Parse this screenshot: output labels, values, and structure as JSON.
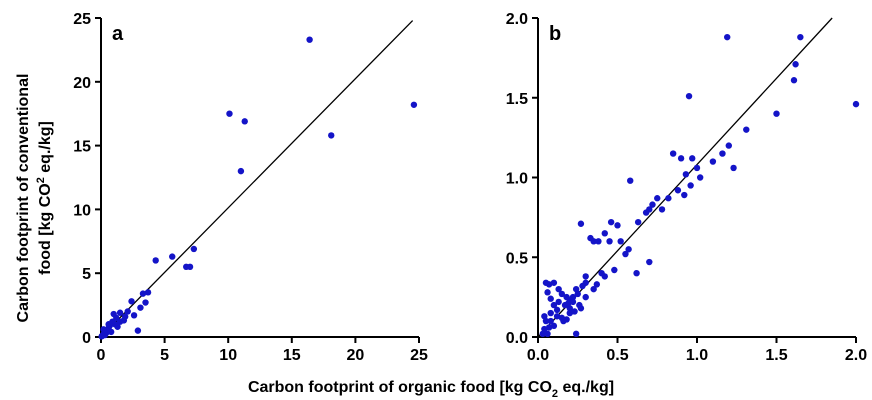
{
  "shared": {
    "x_title_prefix": "Carbon footprint of organic food [kg CO",
    "x_title_sub": "2",
    "x_title_suffix": " eq./kg]",
    "y_title_line1": "Carbon footprint of conventional",
    "y_title_line2_prefix": "food [kg CO",
    "y_title_line2_sup": "2",
    "y_title_line2_suffix": " eq./kg]",
    "point_color": "#1414c8"
  },
  "chart_data": [
    {
      "type": "scatter",
      "panel_label": "a",
      "xlim": [
        0,
        25
      ],
      "ylim": [
        0,
        25
      ],
      "xticks": [
        0,
        5,
        10,
        15,
        20,
        25
      ],
      "yticks": [
        0,
        5,
        10,
        15,
        20,
        25
      ],
      "xtick_labels": [
        "0",
        "5",
        "10",
        "15",
        "20",
        "25"
      ],
      "ytick_labels": [
        "0",
        "5",
        "10",
        "15",
        "20",
        "25"
      ],
      "reference_line": [
        [
          0,
          0
        ],
        [
          24.5,
          24.8
        ]
      ],
      "points": [
        [
          16.4,
          23.3
        ],
        [
          24.6,
          18.2
        ],
        [
          10.1,
          17.5
        ],
        [
          11.3,
          16.9
        ],
        [
          18.1,
          15.8
        ],
        [
          11.0,
          13.0
        ],
        [
          7.3,
          6.9
        ],
        [
          4.3,
          6.0
        ],
        [
          5.6,
          6.3
        ],
        [
          6.7,
          5.5
        ],
        [
          7.0,
          5.5
        ],
        [
          3.7,
          3.5
        ],
        [
          3.3,
          3.4
        ],
        [
          3.5,
          2.7
        ],
        [
          3.1,
          2.3
        ],
        [
          2.4,
          2.8
        ],
        [
          2.1,
          2.0
        ],
        [
          1.9,
          1.6
        ],
        [
          2.6,
          1.7
        ],
        [
          1.5,
          1.9
        ],
        [
          1.2,
          1.5
        ],
        [
          1.0,
          1.8
        ],
        [
          1.1,
          1.0
        ],
        [
          0.9,
          1.2
        ],
        [
          0.7,
          0.9
        ],
        [
          0.6,
          0.7
        ],
        [
          0.5,
          0.5
        ],
        [
          0.4,
          0.3
        ],
        [
          0.3,
          0.4
        ],
        [
          0.2,
          0.2
        ],
        [
          0.1,
          0.1
        ],
        [
          0.2,
          0.6
        ],
        [
          0.8,
          0.4
        ],
        [
          2.9,
          0.5
        ],
        [
          1.5,
          1.2
        ],
        [
          0.3,
          0.15
        ],
        [
          0.05,
          0.05
        ],
        [
          1.8,
          1.3
        ],
        [
          0.6,
          1.0
        ],
        [
          1.3,
          0.8
        ]
      ]
    },
    {
      "type": "scatter",
      "panel_label": "b",
      "xlim": [
        0,
        2.0
      ],
      "ylim": [
        0,
        2.0
      ],
      "xticks": [
        0,
        0.5,
        1.0,
        1.5,
        2.0
      ],
      "yticks": [
        0,
        0.5,
        1.0,
        1.5,
        2.0
      ],
      "xtick_labels": [
        "0.0",
        "0.5",
        "1.0",
        "1.5",
        "2.0"
      ],
      "ytick_labels": [
        "0.0",
        "0.5",
        "1.0",
        "1.5",
        "2.0"
      ],
      "reference_line": [
        [
          0,
          0
        ],
        [
          1.85,
          2.0
        ]
      ],
      "points": [
        [
          1.19,
          1.88
        ],
        [
          1.65,
          1.88
        ],
        [
          1.62,
          1.71
        ],
        [
          1.61,
          1.61
        ],
        [
          2.0,
          1.46
        ],
        [
          0.95,
          1.51
        ],
        [
          1.5,
          1.4
        ],
        [
          1.31,
          1.3
        ],
        [
          1.2,
          1.2
        ],
        [
          1.16,
          1.15
        ],
        [
          1.1,
          1.1
        ],
        [
          1.23,
          1.06
        ],
        [
          1.0,
          1.06
        ],
        [
          0.97,
          1.12
        ],
        [
          0.9,
          1.12
        ],
        [
          0.85,
          1.15
        ],
        [
          0.93,
          1.02
        ],
        [
          1.02,
          1.0
        ],
        [
          0.96,
          0.95
        ],
        [
          0.88,
          0.92
        ],
        [
          0.92,
          0.89
        ],
        [
          0.82,
          0.87
        ],
        [
          0.75,
          0.87
        ],
        [
          0.72,
          0.83
        ],
        [
          0.7,
          0.8
        ],
        [
          0.68,
          0.78
        ],
        [
          0.78,
          0.8
        ],
        [
          0.58,
          0.98
        ],
        [
          0.5,
          0.7
        ],
        [
          0.46,
          0.72
        ],
        [
          0.63,
          0.72
        ],
        [
          0.27,
          0.71
        ],
        [
          0.35,
          0.6
        ],
        [
          0.42,
          0.65
        ],
        [
          0.38,
          0.6
        ],
        [
          0.33,
          0.62
        ],
        [
          0.45,
          0.6
        ],
        [
          0.52,
          0.6
        ],
        [
          0.57,
          0.55
        ],
        [
          0.55,
          0.52
        ],
        [
          0.48,
          0.42
        ],
        [
          0.42,
          0.38
        ],
        [
          0.4,
          0.4
        ],
        [
          0.37,
          0.33
        ],
        [
          0.62,
          0.4
        ],
        [
          0.7,
          0.47
        ],
        [
          0.35,
          0.3
        ],
        [
          0.3,
          0.34
        ],
        [
          0.3,
          0.38
        ],
        [
          0.28,
          0.32
        ],
        [
          0.25,
          0.27
        ],
        [
          0.24,
          0.3
        ],
        [
          0.22,
          0.25
        ],
        [
          0.2,
          0.23
        ],
        [
          0.18,
          0.25
        ],
        [
          0.15,
          0.27
        ],
        [
          0.13,
          0.22
        ],
        [
          0.17,
          0.2
        ],
        [
          0.2,
          0.18
        ],
        [
          0.22,
          0.22
        ],
        [
          0.12,
          0.17
        ],
        [
          0.1,
          0.2
        ],
        [
          0.08,
          0.24
        ],
        [
          0.1,
          0.34
        ],
        [
          0.07,
          0.33
        ],
        [
          0.05,
          0.34
        ],
        [
          0.13,
          0.3
        ],
        [
          0.06,
          0.28
        ],
        [
          0.08,
          0.15
        ],
        [
          0.04,
          0.13
        ],
        [
          0.05,
          0.1
        ],
        [
          0.07,
          0.06
        ],
        [
          0.04,
          0.05
        ],
        [
          0.1,
          0.07
        ],
        [
          0.08,
          0.1
        ],
        [
          0.12,
          0.13
        ],
        [
          0.15,
          0.12
        ],
        [
          0.18,
          0.11
        ],
        [
          0.2,
          0.15
        ],
        [
          0.23,
          0.16
        ],
        [
          0.16,
          0.1
        ],
        [
          0.03,
          0.02
        ],
        [
          0.06,
          0.02
        ],
        [
          0.24,
          0.02
        ],
        [
          0.26,
          0.2
        ],
        [
          0.19,
          0.21
        ],
        [
          0.3,
          0.25
        ],
        [
          0.27,
          0.18
        ]
      ]
    }
  ]
}
